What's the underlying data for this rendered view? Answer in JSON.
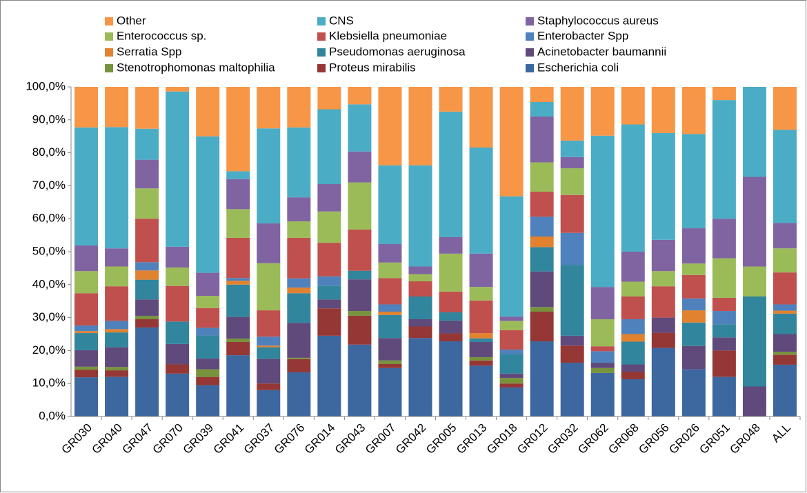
{
  "chart_data": {
    "type": "stacked_bar_100",
    "categories": [
      "GR030",
      "GR040",
      "GR047",
      "GR070",
      "GR039",
      "GR041",
      "GR037",
      "GR076",
      "GR014",
      "GR043",
      "GR007",
      "GR042",
      "GR005",
      "GR013",
      "GR018",
      "GR012",
      "GR032",
      "GR062",
      "GR068",
      "GR056",
      "GR026",
      "GR051",
      "GR048",
      "ALL"
    ],
    "series": [
      {
        "name": "Other",
        "color": "#f79646",
        "values": [
          12.3,
          12.2,
          12.7,
          1.4,
          15,
          25.6,
          12.6,
          12.3,
          6.8,
          5.3,
          23.8,
          23.8,
          7.5,
          18.4,
          33.2,
          4.6,
          16.3,
          14.8,
          11.4,
          14,
          14.3,
          4,
          0,
          13
        ]
      },
      {
        "name": "CNS",
        "color": "#4bacc6",
        "values": [
          35.8,
          36.8,
          9.4,
          47.1,
          41.4,
          2.4,
          28.8,
          21.2,
          22.7,
          14.3,
          23.9,
          30.7,
          38.1,
          32.2,
          36.5,
          4.4,
          5,
          45.9,
          38.6,
          32.4,
          28.6,
          36,
          27.3,
          28.3
        ]
      },
      {
        "name": "Staphylococcus aureus",
        "color": "#8064a2",
        "values": [
          7.8,
          5.5,
          8.7,
          6.3,
          7,
          9.1,
          12.1,
          7.3,
          8.3,
          9.4,
          5.6,
          2.3,
          5,
          10.1,
          1.3,
          13.9,
          3.4,
          9.8,
          9.1,
          9.5,
          10.7,
          12,
          27.2,
          7.7
        ]
      },
      {
        "name": "Enterococcus sp.",
        "color": "#9bbb59",
        "values": [
          6.7,
          6,
          9.2,
          5.6,
          3.7,
          8.7,
          14.3,
          5,
          9.5,
          14.3,
          4.7,
          2.2,
          11.5,
          4.1,
          2.8,
          8.9,
          8.1,
          8.2,
          4.5,
          4.6,
          3.5,
          12,
          9.1,
          7.3
        ]
      },
      {
        "name": "Klebsiella pneumoniae",
        "color": "#c0504d",
        "values": [
          9.8,
          10.5,
          13.2,
          10.8,
          6,
          12.2,
          8,
          12.3,
          10.2,
          12.5,
          8,
          4.6,
          6.3,
          9.9,
          5.9,
          7.6,
          11.5,
          1.5,
          6.9,
          9.5,
          7.1,
          4,
          0,
          9.7
        ]
      },
      {
        "name": "Enterobacter Spp",
        "color": "#4f81bd",
        "values": [
          1.7,
          2.5,
          2.5,
          0,
          2.3,
          0.8,
          2.7,
          2.8,
          2.8,
          0,
          2.2,
          0,
          0,
          0,
          1.3,
          6,
          9.7,
          3.5,
          4.5,
          0,
          3.6,
          4,
          0,
          1.9
        ]
      },
      {
        "name": "Serratia Spp",
        "color": "#e0822f",
        "values": [
          0.6,
          1,
          2.8,
          0,
          0,
          1.2,
          0.5,
          1.7,
          0,
          0,
          1,
          0,
          0,
          1.6,
          0,
          3.2,
          0,
          0,
          2.3,
          0,
          3.7,
          0,
          0,
          0.9
        ]
      },
      {
        "name": "Pseudomonas aeruginosa",
        "color": "#31859c",
        "values": [
          5.2,
          4.5,
          6,
          6.8,
          7,
          9.8,
          3.5,
          9,
          4.2,
          2.6,
          7,
          6.9,
          2.5,
          1.1,
          6,
          7.4,
          21.5,
          0,
          6.9,
          0,
          7.1,
          4,
          27.3,
          6.2
        ]
      },
      {
        "name": "Acinetobacter baumannii",
        "color": "#604a7b",
        "values": [
          5,
          6,
          5,
          6.2,
          3.3,
          6.6,
          7.5,
          10.6,
          2.7,
          9.6,
          6.8,
          2.2,
          3.9,
          4.6,
          1.3,
          10.8,
          3,
          1.6,
          2.2,
          4.6,
          7.1,
          4,
          9.1,
          5.4
        ]
      },
      {
        "name": "Stenotrophomonas maltophilia",
        "color": "#77933c",
        "values": [
          0.9,
          1,
          1,
          0,
          2.3,
          1,
          0,
          0.4,
          0,
          1.4,
          1.1,
          0,
          0,
          1,
          1.7,
          1.4,
          0,
          1.5,
          0,
          0,
          0,
          0,
          0,
          0.9
        ]
      },
      {
        "name": "Proteus mirabilis",
        "color": "#953735",
        "values": [
          2.3,
          2,
          2.5,
          2.8,
          2.5,
          4,
          2,
          4,
          8.3,
          8.8,
          1.2,
          3.5,
          2.4,
          1.6,
          1.2,
          9,
          5.2,
          0,
          2.3,
          4.6,
          0,
          8,
          0,
          3
        ]
      },
      {
        "name": "Escherichia coli",
        "color": "#3c679f",
        "values": [
          11.9,
          12,
          27,
          13,
          9.5,
          18.6,
          8,
          13.4,
          24.5,
          21.8,
          14.7,
          23.8,
          22.8,
          15.4,
          8.8,
          22.8,
          16.3,
          13.2,
          11.3,
          20.8,
          14.3,
          12,
          0,
          15.7
        ]
      }
    ],
    "ylim": [
      0,
      100
    ],
    "yticks": [
      {
        "value": 0,
        "label": "0,0%"
      },
      {
        "value": 10,
        "label": "10,0%"
      },
      {
        "value": 20,
        "label": "20,0%"
      },
      {
        "value": 30,
        "label": "30,0%"
      },
      {
        "value": 40,
        "label": "40,0%"
      },
      {
        "value": 50,
        "label": "50,0%"
      },
      {
        "value": 60,
        "label": "60,0%"
      },
      {
        "value": 70,
        "label": "70,0%"
      },
      {
        "value": 80,
        "label": "80,0%"
      },
      {
        "value": 90,
        "label": "90,0%"
      },
      {
        "value": 100,
        "label": "100,0%"
      }
    ],
    "legend": "top"
  }
}
